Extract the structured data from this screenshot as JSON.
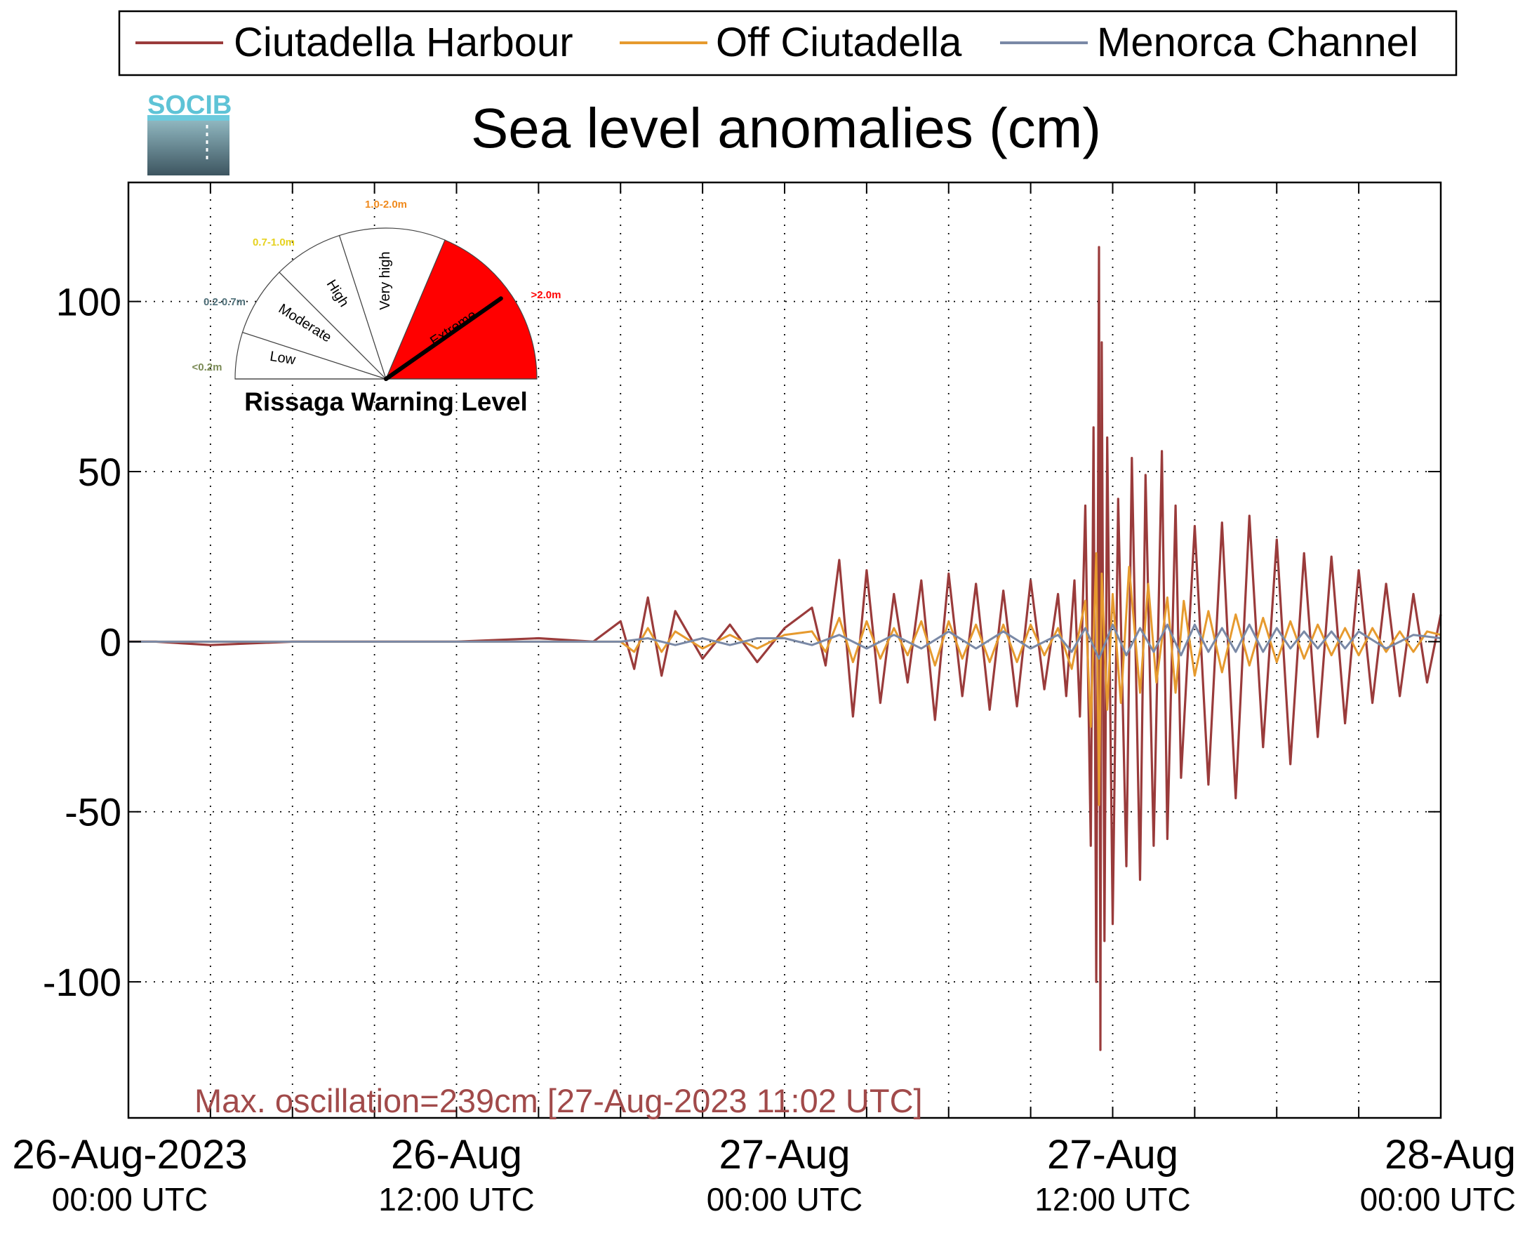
{
  "chart_data": {
    "type": "line",
    "title": "Sea level anomalies (cm)",
    "ylabel": "",
    "xlabel": "",
    "ylim": [
      -140,
      135
    ],
    "xlim_hours": [
      0,
      48
    ],
    "yticks": [
      -100,
      -50,
      0,
      50,
      100
    ],
    "grid": true,
    "legend_placement": "top",
    "x_ticks": [
      {
        "hour": 0,
        "line1": "26-Aug-2023",
        "line2": "00:00 UTC"
      },
      {
        "hour": 12,
        "line1": "26-Aug",
        "line2": "12:00 UTC"
      },
      {
        "hour": 24,
        "line1": "27-Aug",
        "line2": "00:00 UTC"
      },
      {
        "hour": 36,
        "line1": "27-Aug",
        "line2": "12:00 UTC"
      },
      {
        "hour": 48,
        "line1": "28-Aug",
        "line2": "00:00 UTC"
      }
    ],
    "series": [
      {
        "name": "Ciutadella Harbour",
        "color": "#9a3b3b",
        "points": [
          [
            0,
            0
          ],
          [
            1,
            0
          ],
          [
            3,
            -1
          ],
          [
            6,
            0
          ],
          [
            9,
            0
          ],
          [
            12,
            0
          ],
          [
            15,
            1
          ],
          [
            17,
            0
          ],
          [
            18,
            6
          ],
          [
            18.5,
            -8
          ],
          [
            19,
            13
          ],
          [
            19.5,
            -10
          ],
          [
            20,
            9
          ],
          [
            21,
            -5
          ],
          [
            22,
            5
          ],
          [
            23,
            -6
          ],
          [
            24,
            4
          ],
          [
            25,
            10
          ],
          [
            25.5,
            -7
          ],
          [
            26,
            24
          ],
          [
            26.5,
            -22
          ],
          [
            27,
            21
          ],
          [
            27.5,
            -18
          ],
          [
            28,
            14
          ],
          [
            28.5,
            -12
          ],
          [
            29,
            18
          ],
          [
            29.5,
            -23
          ],
          [
            30,
            20
          ],
          [
            30.5,
            -16
          ],
          [
            31,
            17
          ],
          [
            31.5,
            -20
          ],
          [
            32,
            15
          ],
          [
            32.5,
            -19
          ],
          [
            33,
            18
          ],
          [
            33.5,
            -14
          ],
          [
            34,
            14
          ],
          [
            34.3,
            -16
          ],
          [
            34.6,
            18
          ],
          [
            34.8,
            -22
          ],
          [
            35,
            40
          ],
          [
            35.2,
            -60
          ],
          [
            35.3,
            63
          ],
          [
            35.4,
            -100
          ],
          [
            35.5,
            116
          ],
          [
            35.55,
            -120
          ],
          [
            35.6,
            88
          ],
          [
            35.7,
            -88
          ],
          [
            35.8,
            60
          ],
          [
            36,
            -83
          ],
          [
            36.2,
            42
          ],
          [
            36.5,
            -66
          ],
          [
            36.7,
            54
          ],
          [
            37,
            -70
          ],
          [
            37.2,
            49
          ],
          [
            37.5,
            -60
          ],
          [
            37.8,
            56
          ],
          [
            38,
            -58
          ],
          [
            38.3,
            40
          ],
          [
            38.5,
            -40
          ],
          [
            39,
            34
          ],
          [
            39.5,
            -42
          ],
          [
            40,
            35
          ],
          [
            40.5,
            -46
          ],
          [
            41,
            37
          ],
          [
            41.5,
            -31
          ],
          [
            42,
            30
          ],
          [
            42.5,
            -36
          ],
          [
            43,
            26
          ],
          [
            43.5,
            -28
          ],
          [
            44,
            25
          ],
          [
            44.5,
            -24
          ],
          [
            45,
            21
          ],
          [
            45.5,
            -18
          ],
          [
            46,
            17
          ],
          [
            46.5,
            -16
          ],
          [
            47,
            14
          ],
          [
            47.5,
            -12
          ],
          [
            48,
            8
          ]
        ]
      },
      {
        "name": "Off Ciutadella",
        "color": "#e69a2e",
        "points": [
          [
            0,
            0
          ],
          [
            18,
            0
          ],
          [
            18.5,
            -3
          ],
          [
            19,
            4
          ],
          [
            19.5,
            -3
          ],
          [
            20,
            3
          ],
          [
            21,
            -2
          ],
          [
            22,
            2
          ],
          [
            23,
            -2
          ],
          [
            24,
            2
          ],
          [
            25,
            3
          ],
          [
            25.5,
            -3
          ],
          [
            26,
            7
          ],
          [
            26.5,
            -6
          ],
          [
            27,
            6
          ],
          [
            27.5,
            -5
          ],
          [
            28,
            4
          ],
          [
            28.5,
            -4
          ],
          [
            29,
            6
          ],
          [
            29.5,
            -7
          ],
          [
            30,
            6
          ],
          [
            30.5,
            -5
          ],
          [
            31,
            5
          ],
          [
            31.5,
            -6
          ],
          [
            32,
            5
          ],
          [
            32.5,
            -6
          ],
          [
            33,
            5
          ],
          [
            33.5,
            -4
          ],
          [
            34,
            4
          ],
          [
            34.5,
            -8
          ],
          [
            35,
            12
          ],
          [
            35.2,
            -25
          ],
          [
            35.4,
            26
          ],
          [
            35.5,
            -48
          ],
          [
            35.6,
            20
          ],
          [
            35.8,
            -20
          ],
          [
            36,
            14
          ],
          [
            36.3,
            -18
          ],
          [
            36.6,
            22
          ],
          [
            37,
            -15
          ],
          [
            37.3,
            17
          ],
          [
            37.6,
            -12
          ],
          [
            38,
            13
          ],
          [
            38.3,
            -15
          ],
          [
            38.6,
            12
          ],
          [
            39,
            -10
          ],
          [
            39.5,
            9
          ],
          [
            40,
            -9
          ],
          [
            40.5,
            8
          ],
          [
            41,
            -7
          ],
          [
            41.5,
            7
          ],
          [
            42,
            -6
          ],
          [
            42.5,
            6
          ],
          [
            43,
            -5
          ],
          [
            43.5,
            5
          ],
          [
            44,
            -4
          ],
          [
            44.5,
            4
          ],
          [
            45,
            -4
          ],
          [
            45.5,
            4
          ],
          [
            46,
            -3
          ],
          [
            46.5,
            3
          ],
          [
            47,
            -3
          ],
          [
            47.5,
            3
          ],
          [
            48,
            2
          ]
        ]
      },
      {
        "name": "Menorca Channel",
        "color": "#7a89a6",
        "points": [
          [
            0,
            0
          ],
          [
            6,
            0
          ],
          [
            12,
            0
          ],
          [
            18,
            0
          ],
          [
            19,
            1
          ],
          [
            20,
            -1
          ],
          [
            21,
            1
          ],
          [
            22,
            -1
          ],
          [
            23,
            1
          ],
          [
            24,
            1
          ],
          [
            25,
            -1
          ],
          [
            26,
            2
          ],
          [
            27,
            -2
          ],
          [
            28,
            2
          ],
          [
            29,
            -2
          ],
          [
            30,
            3
          ],
          [
            31,
            -2
          ],
          [
            32,
            3
          ],
          [
            33,
            -2
          ],
          [
            34,
            2
          ],
          [
            34.5,
            -3
          ],
          [
            35,
            4
          ],
          [
            35.5,
            -5
          ],
          [
            36,
            5
          ],
          [
            36.5,
            -4
          ],
          [
            37,
            4
          ],
          [
            37.5,
            -3
          ],
          [
            38,
            5
          ],
          [
            38.5,
            -4
          ],
          [
            39,
            5
          ],
          [
            39.5,
            -3
          ],
          [
            40,
            4
          ],
          [
            40.5,
            -3
          ],
          [
            41,
            5
          ],
          [
            41.5,
            -3
          ],
          [
            42,
            4
          ],
          [
            42.5,
            -2
          ],
          [
            43,
            3
          ],
          [
            43.5,
            -2
          ],
          [
            44,
            3
          ],
          [
            44.5,
            -2
          ],
          [
            45,
            3
          ],
          [
            46,
            -2
          ],
          [
            47,
            2
          ],
          [
            48,
            1
          ]
        ]
      }
    ],
    "annotation": "Max. oscillation=239cm [27-Aug-2023 11:02 UTC]"
  },
  "branding": {
    "logo_text": "SOCIB"
  },
  "gauge": {
    "title": "Rissaga Warning Level",
    "needle_value": 1,
    "sectors": [
      {
        "label": "Low",
        "range_label": "<0.2m",
        "fill": "#ffffff",
        "label_color": "#7a8a55"
      },
      {
        "label": "Moderate",
        "range_label": "0.2-0.7m",
        "fill": "#ffffff",
        "label_color": "#4f6f78"
      },
      {
        "label": "High",
        "range_label": "0.7-1.0m",
        "fill": "#ffffff",
        "label_color": "#e6d21f"
      },
      {
        "label": "Very high",
        "range_label": "1.0-2.0m",
        "fill": "#ffffff",
        "label_color": "#f08a1d"
      },
      {
        "label": "Extreme",
        "range_label": ">2.0m",
        "fill": "#ff0000",
        "label_color": "#ff0000"
      }
    ]
  }
}
